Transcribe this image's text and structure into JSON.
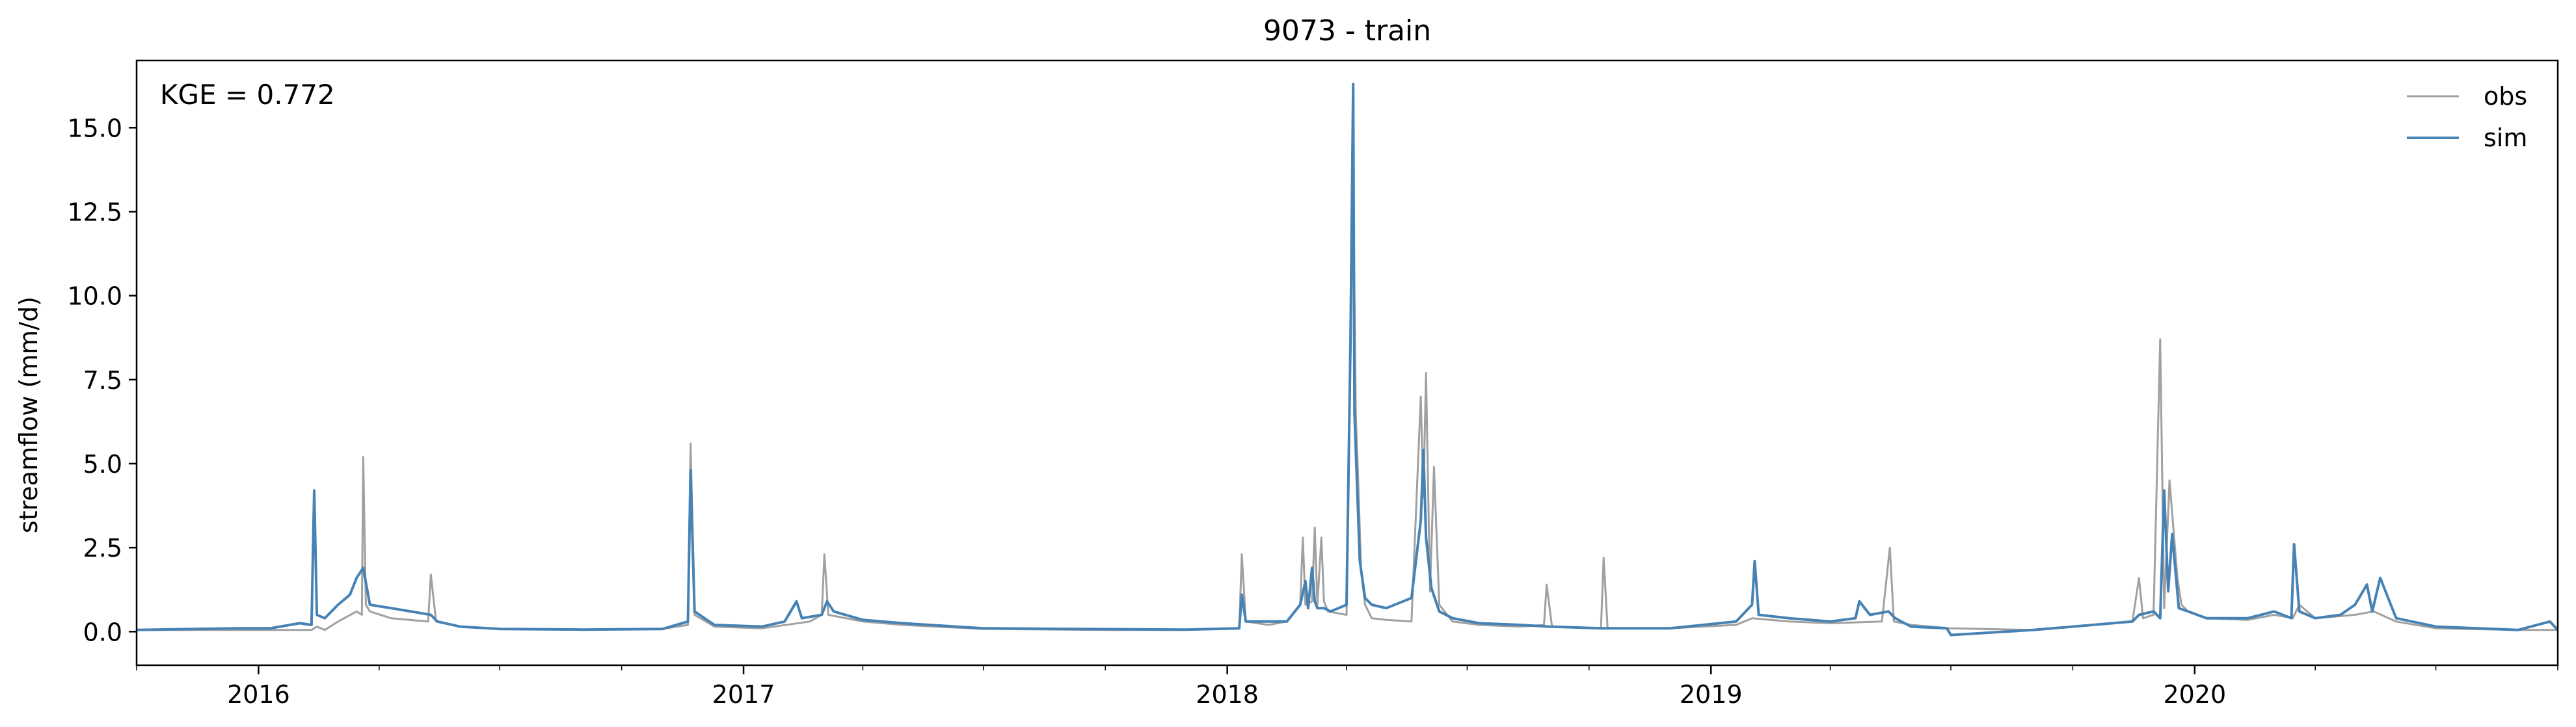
{
  "chart_data": {
    "type": "line",
    "title": "9073 - train",
    "xlabel": "",
    "ylabel": "streamflow (mm/d)",
    "annotation": "KGE = 0.772",
    "xlim": [
      "2015-10-01",
      "2020-10-01"
    ],
    "ylim": [
      -1.0,
      17.0
    ],
    "x_ticks": [
      {
        "date": "2016-01-01",
        "label": "2016"
      },
      {
        "date": "2017-01-01",
        "label": "2017"
      },
      {
        "date": "2018-01-01",
        "label": "2018"
      },
      {
        "date": "2019-01-01",
        "label": "2019"
      },
      {
        "date": "2020-01-01",
        "label": "2020"
      }
    ],
    "y_ticks": [
      {
        "value": 0.0,
        "label": "0.0"
      },
      {
        "value": 2.5,
        "label": "2.5"
      },
      {
        "value": 5.0,
        "label": "5.0"
      },
      {
        "value": 7.5,
        "label": "7.5"
      },
      {
        "value": 10.0,
        "label": "10.0"
      },
      {
        "value": 12.5,
        "label": "12.5"
      },
      {
        "value": 15.0,
        "label": "15.0"
      }
    ],
    "grid": false,
    "legend_position": "top-right",
    "series": [
      {
        "name": "obs",
        "color": "#a0a0a0",
        "x": [
          "2015-10-01",
          "2015-12-15",
          "2016-01-10",
          "2016-02-10",
          "2016-02-14",
          "2016-02-20",
          "2016-03-01",
          "2016-03-15",
          "2016-03-19",
          "2016-03-20",
          "2016-03-22",
          "2016-03-25",
          "2016-04-10",
          "2016-05-08",
          "2016-05-10",
          "2016-05-14",
          "2016-06-01",
          "2016-07-01",
          "2016-09-01",
          "2016-11-01",
          "2016-11-20",
          "2016-11-22",
          "2016-11-25",
          "2016-12-10",
          "2017-01-15",
          "2017-02-20",
          "2017-03-01",
          "2017-03-03",
          "2017-03-06",
          "2017-04-01",
          "2017-05-01",
          "2017-07-01",
          "2017-09-01",
          "2017-10-01",
          "2017-12-01",
          "2018-01-10",
          "2018-01-12",
          "2018-01-15",
          "2018-02-01",
          "2018-02-15",
          "2018-02-25",
          "2018-02-27",
          "2018-03-01",
          "2018-03-06",
          "2018-03-08",
          "2018-03-10",
          "2018-03-13",
          "2018-03-15",
          "2018-03-18",
          "2018-04-01",
          "2018-04-06",
          "2018-04-08",
          "2018-04-10",
          "2018-04-12",
          "2018-04-15",
          "2018-04-20",
          "2018-05-01",
          "2018-05-20",
          "2018-05-27",
          "2018-05-29",
          "2018-05-31",
          "2018-06-03",
          "2018-06-06",
          "2018-06-10",
          "2018-06-20",
          "2018-07-10",
          "2018-08-10",
          "2018-08-28",
          "2018-08-30",
          "2018-09-03",
          "2018-10-10",
          "2018-10-12",
          "2018-10-15",
          "2018-12-01",
          "2019-01-20",
          "2019-02-01",
          "2019-03-01",
          "2019-04-01",
          "2019-05-10",
          "2019-05-16",
          "2019-05-19",
          "2019-06-01",
          "2019-07-01",
          "2019-09-01",
          "2019-11-15",
          "2019-11-20",
          "2019-11-23",
          "2019-12-01",
          "2019-12-06",
          "2019-12-09",
          "2019-12-13",
          "2019-12-19",
          "2019-12-22",
          "2019-12-27",
          "2020-01-10",
          "2020-02-10",
          "2020-03-01",
          "2020-03-15",
          "2020-03-20",
          "2020-04-01",
          "2020-05-01",
          "2020-05-15",
          "2020-06-01",
          "2020-07-01",
          "2020-09-01",
          "2020-10-01"
        ],
        "y": [
          0.05,
          0.05,
          0.05,
          0.05,
          0.15,
          0.05,
          0.3,
          0.6,
          0.5,
          5.2,
          0.8,
          0.6,
          0.4,
          0.3,
          1.7,
          0.3,
          0.15,
          0.08,
          0.06,
          0.08,
          0.2,
          5.6,
          0.5,
          0.15,
          0.1,
          0.3,
          0.5,
          2.3,
          0.5,
          0.3,
          0.2,
          0.08,
          0.06,
          0.05,
          0.05,
          0.1,
          2.3,
          0.3,
          0.2,
          0.3,
          0.8,
          2.8,
          0.8,
          0.9,
          3.1,
          0.8,
          2.8,
          0.9,
          0.6,
          0.5,
          13.4,
          6.5,
          4.3,
          1.8,
          0.8,
          0.4,
          0.35,
          0.3,
          7.0,
          4.0,
          7.7,
          1.2,
          4.9,
          0.8,
          0.3,
          0.2,
          0.15,
          0.2,
          1.4,
          0.15,
          0.1,
          2.2,
          0.1,
          0.1,
          0.2,
          0.4,
          0.3,
          0.25,
          0.3,
          2.5,
          0.3,
          0.2,
          0.1,
          0.05,
          0.3,
          1.6,
          0.4,
          0.5,
          8.7,
          0.7,
          4.5,
          1.6,
          0.8,
          0.6,
          0.4,
          0.35,
          0.5,
          0.4,
          0.8,
          0.4,
          0.5,
          0.6,
          0.3,
          0.1,
          0.05,
          0.05
        ]
      },
      {
        "name": "sim",
        "color": "#4682b4",
        "x": [
          "2015-10-01",
          "2015-12-15",
          "2016-01-10",
          "2016-02-01",
          "2016-02-10",
          "2016-02-12",
          "2016-02-14",
          "2016-02-20",
          "2016-03-01",
          "2016-03-10",
          "2016-03-15",
          "2016-03-20",
          "2016-03-25",
          "2016-04-10",
          "2016-05-10",
          "2016-05-15",
          "2016-06-01",
          "2016-07-01",
          "2016-09-01",
          "2016-11-01",
          "2016-11-20",
          "2016-11-22",
          "2016-11-25",
          "2016-12-10",
          "2017-01-15",
          "2017-02-01",
          "2017-02-10",
          "2017-02-14",
          "2017-03-01",
          "2017-03-05",
          "2017-03-10",
          "2017-04-01",
          "2017-05-01",
          "2017-07-01",
          "2017-09-01",
          "2017-12-01",
          "2018-01-10",
          "2018-01-12",
          "2018-01-15",
          "2018-02-01",
          "2018-02-15",
          "2018-02-25",
          "2018-03-01",
          "2018-03-03",
          "2018-03-06",
          "2018-03-08",
          "2018-03-10",
          "2018-03-15",
          "2018-03-20",
          "2018-04-01",
          "2018-04-04",
          "2018-04-06",
          "2018-04-07",
          "2018-04-09",
          "2018-04-11",
          "2018-04-15",
          "2018-04-20",
          "2018-05-01",
          "2018-05-20",
          "2018-05-27",
          "2018-05-29",
          "2018-05-31",
          "2018-06-04",
          "2018-06-10",
          "2018-06-20",
          "2018-07-10",
          "2018-08-10",
          "2018-09-01",
          "2018-10-10",
          "2018-12-01",
          "2019-01-20",
          "2019-02-01",
          "2019-02-03",
          "2019-02-06",
          "2019-03-01",
          "2019-04-01",
          "2019-04-20",
          "2019-04-23",
          "2019-05-01",
          "2019-05-15",
          "2019-05-20",
          "2019-06-01",
          "2019-06-28",
          "2019-07-01",
          "2019-09-01",
          "2019-11-15",
          "2019-11-20",
          "2019-12-01",
          "2019-12-06",
          "2019-12-09",
          "2019-12-12",
          "2019-12-15",
          "2019-12-20",
          "2019-12-27",
          "2020-01-10",
          "2020-02-10",
          "2020-03-01",
          "2020-03-14",
          "2020-03-16",
          "2020-03-20",
          "2020-04-01",
          "2020-04-20",
          "2020-05-01",
          "2020-05-10",
          "2020-05-14",
          "2020-05-20",
          "2020-06-01",
          "2020-07-01",
          "2020-09-01",
          "2020-09-25",
          "2020-10-01"
        ],
        "y": [
          0.05,
          0.1,
          0.1,
          0.25,
          0.2,
          4.2,
          0.5,
          0.4,
          0.8,
          1.1,
          1.6,
          1.9,
          0.8,
          0.7,
          0.5,
          0.3,
          0.15,
          0.08,
          0.06,
          0.08,
          0.3,
          4.8,
          0.6,
          0.2,
          0.15,
          0.3,
          0.9,
          0.4,
          0.5,
          0.9,
          0.6,
          0.35,
          0.25,
          0.1,
          0.08,
          0.06,
          0.1,
          1.1,
          0.3,
          0.3,
          0.3,
          0.8,
          1.5,
          0.7,
          1.9,
          0.9,
          0.7,
          0.7,
          0.6,
          0.8,
          8.7,
          16.3,
          6.5,
          4.3,
          2.1,
          1.0,
          0.8,
          0.7,
          1.0,
          3.3,
          5.4,
          2.8,
          1.3,
          0.6,
          0.4,
          0.25,
          0.2,
          0.15,
          0.1,
          0.1,
          0.3,
          0.8,
          2.1,
          0.5,
          0.4,
          0.3,
          0.4,
          0.9,
          0.5,
          0.6,
          0.4,
          0.15,
          0.1,
          -0.1,
          0.05,
          0.3,
          0.5,
          0.6,
          0.4,
          4.2,
          1.2,
          2.9,
          0.7,
          0.6,
          0.4,
          0.4,
          0.6,
          0.4,
          2.6,
          0.6,
          0.4,
          0.5,
          0.8,
          1.4,
          0.6,
          1.6,
          0.4,
          0.15,
          0.05,
          0.3,
          0.05
        ]
      }
    ]
  }
}
